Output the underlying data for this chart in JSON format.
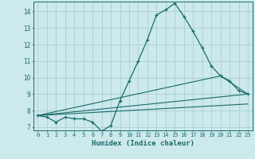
{
  "xlabel": "Humidex (Indice chaleur)",
  "bg_color": "#cce9ec",
  "line_color": "#1a6b6b",
  "grid_color": "#aacfd4",
  "xlim": [
    -0.5,
    23.5
  ],
  "ylim": [
    6.8,
    14.6
  ],
  "yticks": [
    7,
    8,
    9,
    10,
    11,
    12,
    13,
    14
  ],
  "xticks": [
    0,
    1,
    2,
    3,
    4,
    5,
    6,
    7,
    8,
    9,
    10,
    11,
    12,
    13,
    14,
    15,
    16,
    17,
    18,
    19,
    20,
    21,
    22,
    23
  ],
  "series1_x": [
    0,
    1,
    2,
    3,
    4,
    5,
    6,
    7,
    8,
    9,
    10,
    11,
    12,
    13,
    14,
    15,
    16,
    17,
    18,
    19,
    20,
    21,
    22,
    23
  ],
  "series1_y": [
    7.7,
    7.6,
    7.3,
    7.6,
    7.5,
    7.5,
    7.3,
    6.75,
    7.1,
    8.6,
    9.8,
    11.0,
    12.3,
    13.8,
    14.1,
    14.5,
    13.7,
    12.8,
    11.8,
    10.7,
    10.1,
    9.8,
    9.2,
    9.0
  ],
  "series2_x": [
    0,
    23
  ],
  "series2_y": [
    7.7,
    9.0
  ],
  "series3_x": [
    0,
    20,
    23
  ],
  "series3_y": [
    7.7,
    10.1,
    9.0
  ],
  "series4_x": [
    0,
    23
  ],
  "series4_y": [
    7.7,
    8.4
  ]
}
